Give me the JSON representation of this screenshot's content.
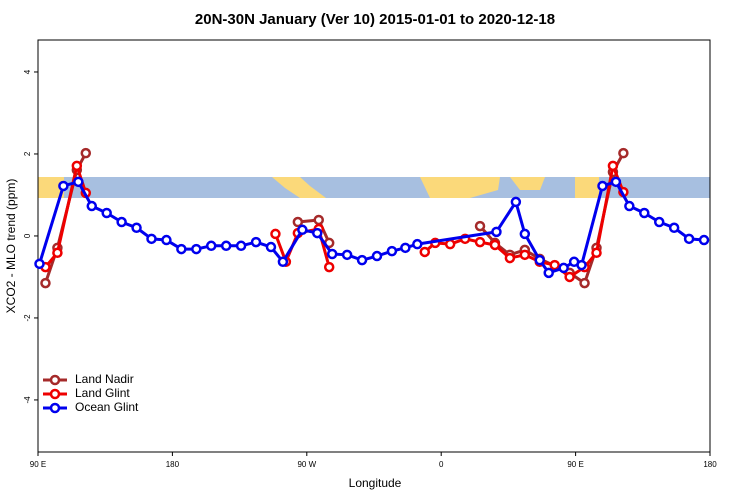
{
  "chart_data": {
    "type": "line",
    "title": "20N-30N January (Ver 10)   2015-01-01 to 2020-12-18",
    "x_label": "Longitude",
    "y_label": "XCO2 - MLO trend (ppm)",
    "xlim": [
      90,
      540
    ],
    "xticks": [
      {
        "value": 90,
        "label": "90 E"
      },
      {
        "value": 180,
        "label": "180"
      },
      {
        "value": 270,
        "label": "90 W"
      },
      {
        "value": 360,
        "label": "0"
      },
      {
        "value": 450,
        "label": "90 E"
      },
      {
        "value": 540,
        "label": "180"
      }
    ],
    "ylim": [
      -5.27,
      4.78
    ],
    "yticks": [
      4,
      2,
      0,
      -2,
      -4
    ],
    "legend": "bottomleft",
    "series": [
      {
        "name": "Land Nadir",
        "color": "#a52a2a",
        "x": [
          95,
          103,
          116,
          122,
          null,
          264,
          278,
          285,
          null,
          386,
          396,
          406,
          416,
          426,
          446,
          456,
          464,
          475,
          482
        ],
        "values": [
          -1.15,
          -0.29,
          1.61,
          2.02,
          null,
          0.34,
          0.39,
          -0.17,
          null,
          0.24,
          -0.17,
          -0.46,
          -0.34,
          -0.56,
          -0.9,
          -1.15,
          -0.29,
          1.56,
          2.02
        ]
      },
      {
        "name": "Land Glint",
        "color": "#ee0000",
        "x": [
          95,
          103,
          116,
          122,
          null,
          249,
          256,
          264,
          278,
          285,
          null,
          349,
          356,
          366,
          376,
          386,
          396,
          406,
          416,
          426,
          436,
          446,
          456,
          464,
          475,
          482
        ],
        "values": [
          -0.76,
          -0.41,
          1.71,
          1.05,
          null,
          0.05,
          -0.63,
          0.07,
          0.17,
          -0.76,
          null,
          -0.39,
          -0.17,
          -0.2,
          -0.07,
          -0.15,
          -0.22,
          -0.54,
          -0.46,
          -0.63,
          -0.71,
          -1.0,
          -0.76,
          -0.41,
          1.71,
          1.07
        ]
      },
      {
        "name": "Ocean Glint",
        "color": "#0000ee",
        "x": [
          91,
          107,
          117,
          126,
          136,
          146,
          156,
          166,
          176,
          186,
          196,
          206,
          216,
          226,
          236,
          246,
          254,
          267,
          277,
          287,
          297,
          307,
          317,
          327,
          336,
          344,
          397,
          410,
          416,
          426,
          432,
          442,
          449,
          454,
          468,
          477,
          486,
          496,
          506,
          516,
          526,
          536
        ],
        "values": [
          -0.68,
          1.22,
          1.32,
          0.73,
          0.56,
          0.34,
          0.2,
          -0.07,
          -0.1,
          -0.32,
          -0.32,
          -0.24,
          -0.24,
          -0.24,
          -0.15,
          -0.27,
          -0.63,
          0.15,
          0.07,
          -0.44,
          -0.46,
          -0.59,
          -0.49,
          -0.37,
          -0.29,
          -0.2,
          0.1,
          0.83,
          0.05,
          -0.59,
          -0.9,
          -0.78,
          -0.63,
          -0.71,
          1.22,
          1.32,
          0.73,
          0.56,
          0.34,
          0.2,
          -0.07,
          -0.1
        ]
      }
    ]
  }
}
